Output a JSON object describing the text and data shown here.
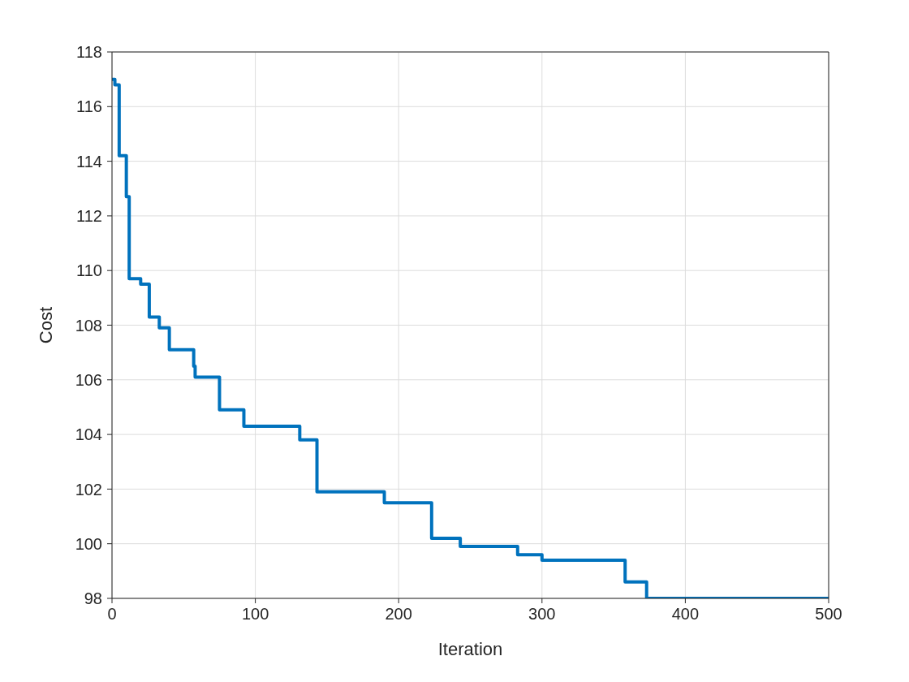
{
  "chart_data": {
    "type": "step",
    "xlabel": "Iteration",
    "ylabel": "Cost",
    "x": [
      0,
      2,
      5,
      10,
      12,
      20,
      26,
      33,
      40,
      57,
      58,
      75,
      92,
      131,
      143,
      190,
      223,
      243,
      283,
      300,
      358,
      373,
      500
    ],
    "series": [
      {
        "color": "#0072bd",
        "values": [
          117.0,
          116.8,
          114.2,
          112.7,
          109.7,
          109.5,
          108.3,
          107.9,
          107.1,
          106.5,
          106.1,
          104.9,
          104.3,
          103.8,
          101.9,
          101.5,
          100.2,
          99.9,
          99.6,
          99.4,
          98.6,
          98.0,
          98.0
        ]
      }
    ],
    "xlim": [
      0,
      500
    ],
    "xticks": [
      0,
      100,
      200,
      300,
      400,
      500
    ],
    "ylim": [
      98,
      118
    ],
    "yticks": [
      98,
      100,
      102,
      104,
      106,
      108,
      110,
      112,
      114,
      116,
      118
    ],
    "grid": true,
    "legend": false
  }
}
